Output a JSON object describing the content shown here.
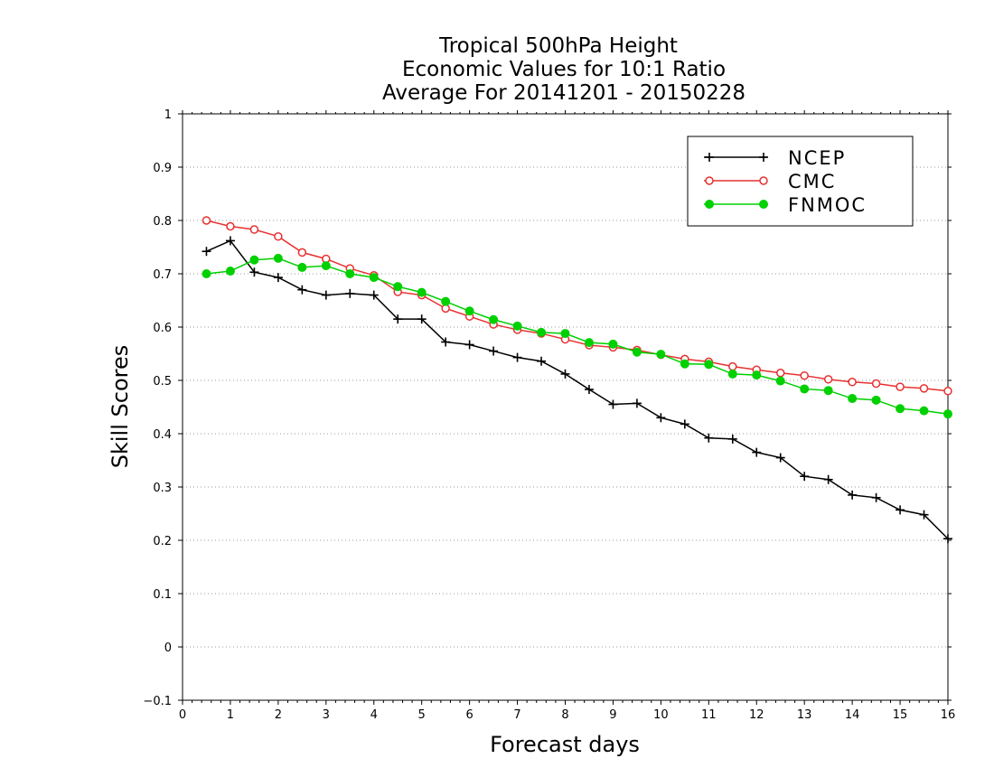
{
  "chart_data": {
    "type": "line",
    "title_lines": [
      "Tropical 500hPa Height",
      "Economic Values for 10:1 Ratio",
      "Average For 20141201 - 20150228"
    ],
    "xlabel": "Forecast days",
    "ylabel": "Skill Scores",
    "xlim": [
      0,
      16
    ],
    "ylim": [
      -0.1,
      1
    ],
    "x_ticks": [
      0,
      1,
      2,
      3,
      4,
      5,
      6,
      7,
      8,
      9,
      10,
      11,
      12,
      13,
      14,
      15,
      16
    ],
    "x_tick_labels": [
      "0",
      "1",
      "2",
      "3",
      "4",
      "5",
      "6",
      "7",
      "8",
      "9",
      "10",
      "11",
      "12",
      "13",
      "14",
      "15",
      "16"
    ],
    "y_ticks": [
      -0.1,
      0,
      0.1,
      0.2,
      0.3,
      0.4,
      0.5,
      0.6,
      0.7,
      0.8,
      0.9,
      1
    ],
    "y_tick_labels": [
      "−0.1",
      "0",
      "0.1",
      "0.2",
      "0.3",
      "0.4",
      "0.5",
      "0.6",
      "0.7",
      "0.8",
      "0.9",
      "1"
    ],
    "grid": "horizontal dotted",
    "legend_position": "top-right",
    "x": [
      0.5,
      1.0,
      1.5,
      2.0,
      2.5,
      3.0,
      3.5,
      4.0,
      4.5,
      5.0,
      5.5,
      6.0,
      6.5,
      7.0,
      7.5,
      8.0,
      8.5,
      9.0,
      9.5,
      10.0,
      10.5,
      11.0,
      11.5,
      12.0,
      12.5,
      13.0,
      13.5,
      14.0,
      14.5,
      15.0,
      15.5,
      16.0
    ],
    "series": [
      {
        "name": "NCEP",
        "color": "#000000",
        "marker": "plus",
        "values": [
          0.742,
          0.762,
          0.703,
          0.693,
          0.67,
          0.66,
          0.663,
          0.66,
          0.615,
          0.615,
          0.572,
          0.567,
          0.555,
          0.543,
          0.536,
          0.512,
          0.483,
          0.455,
          0.457,
          0.43,
          0.418,
          0.392,
          0.39,
          0.365,
          0.355,
          0.32,
          0.314,
          0.285,
          0.28,
          0.257,
          0.248,
          0.203
        ]
      },
      {
        "name": "CMC",
        "color": "#e83030",
        "marker": "open-circle",
        "values": [
          0.8,
          0.789,
          0.783,
          0.77,
          0.74,
          0.728,
          0.71,
          0.697,
          0.666,
          0.66,
          0.635,
          0.62,
          0.605,
          0.595,
          0.588,
          0.577,
          0.566,
          0.562,
          0.557,
          0.548,
          0.54,
          0.535,
          0.526,
          0.52,
          0.514,
          0.509,
          0.502,
          0.497,
          0.494,
          0.488,
          0.485,
          0.48
        ]
      },
      {
        "name": "FNMOC",
        "color": "#00d000",
        "marker": "filled-circle",
        "values": [
          0.7,
          0.705,
          0.726,
          0.729,
          0.712,
          0.715,
          0.7,
          0.693,
          0.676,
          0.665,
          0.648,
          0.63,
          0.614,
          0.602,
          0.59,
          0.588,
          0.571,
          0.568,
          0.553,
          0.549,
          0.531,
          0.53,
          0.512,
          0.51,
          0.499,
          0.484,
          0.481,
          0.466,
          0.463,
          0.447,
          0.443,
          0.437
        ]
      }
    ]
  }
}
